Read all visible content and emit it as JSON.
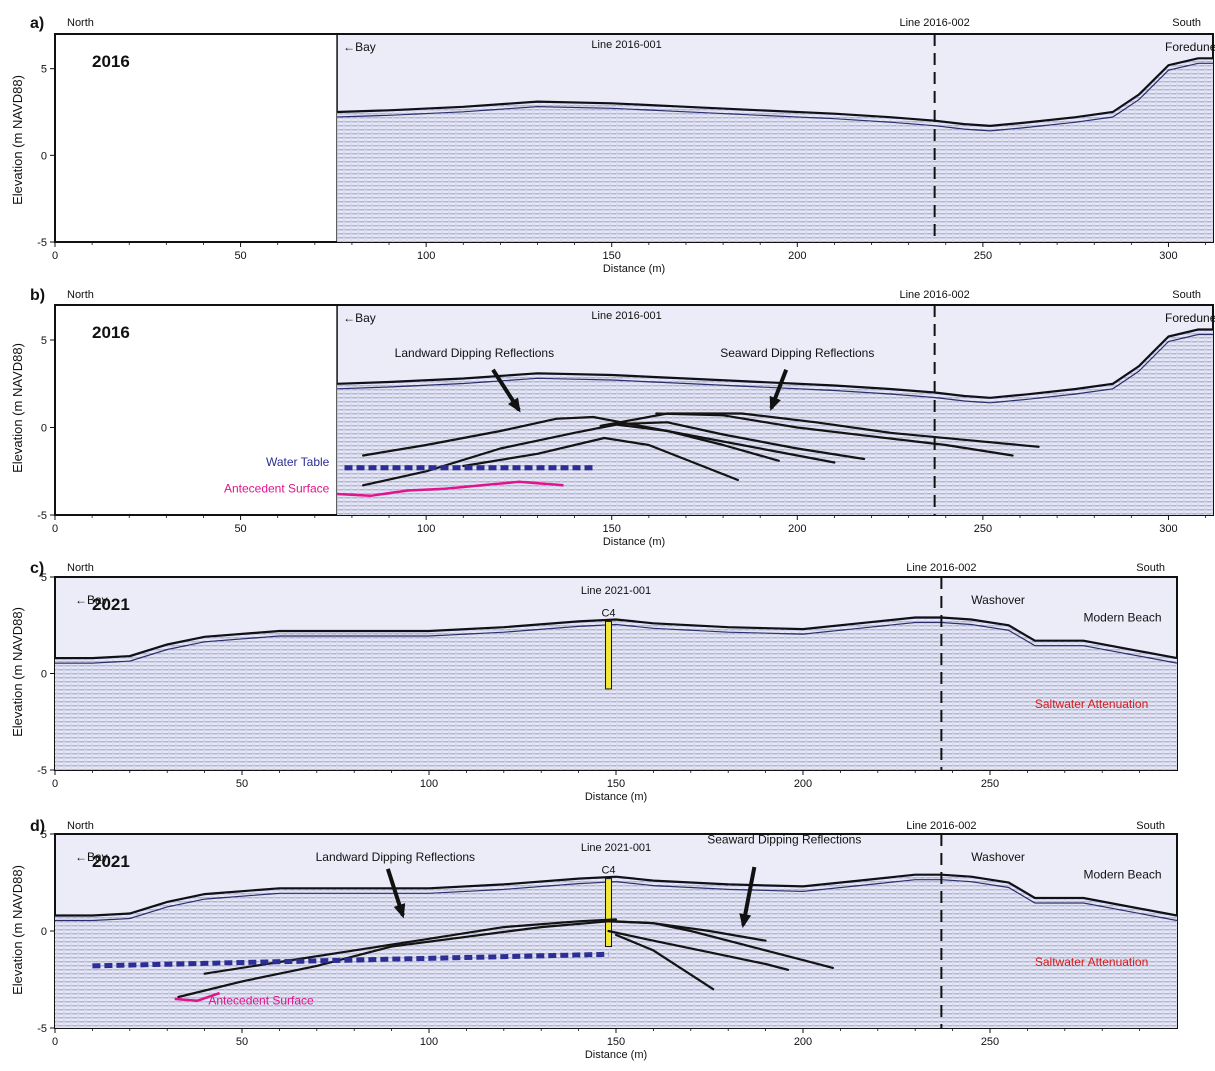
{
  "chart_data": [
    {
      "type": "line",
      "panel_label": "a)",
      "year": "2016",
      "xlabel": "Distance (m)",
      "ylabel": "Elevation (m NAVD88)",
      "xlim": [
        0,
        312
      ],
      "ylim": [
        -5,
        7
      ],
      "xticks": [
        0,
        50,
        100,
        150,
        200,
        250,
        300
      ],
      "yticks": [
        5,
        0,
        -5
      ],
      "north_label": "North",
      "south_label": "South",
      "line_name": "Line 2016-001",
      "crossing_line": {
        "name": "Line 2016-002",
        "x": 237
      },
      "labels": {
        "bay": "←Bay",
        "foredune": "Foredune"
      },
      "data_start_x": 76,
      "surface": {
        "x": [
          76,
          90,
          110,
          130,
          150,
          170,
          190,
          210,
          225,
          237,
          245,
          252,
          262,
          275,
          285,
          292,
          300,
          308,
          312
        ],
        "y": [
          2.5,
          2.6,
          2.8,
          3.1,
          3.0,
          2.8,
          2.6,
          2.4,
          2.2,
          2.0,
          1.8,
          1.7,
          1.9,
          2.2,
          2.5,
          3.5,
          5.2,
          5.6,
          5.6
        ]
      },
      "interpretations": []
    },
    {
      "type": "line",
      "panel_label": "b)",
      "year": "2016",
      "xlabel": "Distance (m)",
      "ylabel": "Elevation (m NAVD88)",
      "xlim": [
        0,
        312
      ],
      "ylim": [
        -5,
        7
      ],
      "xticks": [
        0,
        50,
        100,
        150,
        200,
        250,
        300
      ],
      "yticks": [
        5,
        0,
        -5
      ],
      "north_label": "North",
      "south_label": "South",
      "line_name": "Line 2016-001",
      "crossing_line": {
        "name": "Line 2016-002",
        "x": 237
      },
      "labels": {
        "bay": "←Bay",
        "foredune": "Foredune",
        "landward": "Landward Dipping Reflections",
        "seaward": "Seaward Dipping Reflections",
        "water_table": "Water Table",
        "antecedent": "Antecedent Surface"
      },
      "data_start_x": 76,
      "surface": {
        "x": [
          76,
          90,
          110,
          130,
          150,
          170,
          190,
          210,
          225,
          237,
          245,
          252,
          262,
          275,
          285,
          292,
          300,
          308,
          312
        ],
        "y": [
          2.5,
          2.6,
          2.8,
          3.1,
          3.0,
          2.8,
          2.6,
          2.4,
          2.2,
          2.0,
          1.8,
          1.7,
          1.9,
          2.2,
          2.5,
          3.5,
          5.2,
          5.6,
          5.6
        ]
      },
      "interpretations": [
        {
          "kind": "reflector",
          "x": [
            83,
            100,
            120,
            135,
            145,
            160,
            175,
            195,
            210
          ],
          "y": [
            -1.6,
            -1.0,
            -0.2,
            0.5,
            0.6,
            0.0,
            -0.6,
            -1.4,
            -2.0
          ]
        },
        {
          "kind": "reflector",
          "x": [
            83,
            100,
            120,
            140,
            152,
            165,
            180,
            200,
            218
          ],
          "y": [
            -3.3,
            -2.5,
            -1.2,
            -0.3,
            0.2,
            0.3,
            -0.4,
            -1.2,
            -1.8
          ]
        },
        {
          "kind": "reflector",
          "x": [
            110,
            130,
            148,
            160,
            172,
            184
          ],
          "y": [
            -2.2,
            -1.5,
            -0.6,
            -1.0,
            -2.0,
            -3.0
          ]
        },
        {
          "kind": "reflector",
          "x": [
            147,
            165,
            185,
            205,
            225,
            245,
            265
          ],
          "y": [
            0.1,
            0.8,
            0.8,
            0.3,
            -0.3,
            -0.7,
            -1.1
          ]
        },
        {
          "kind": "reflector",
          "x": [
            162,
            180,
            200,
            220,
            240,
            258
          ],
          "y": [
            0.8,
            0.7,
            0.0,
            -0.5,
            -1.0,
            -1.6
          ]
        },
        {
          "kind": "reflector",
          "x": [
            150,
            165,
            180,
            195
          ],
          "y": [
            0.2,
            -0.2,
            -1.0,
            -1.9
          ]
        },
        {
          "kind": "water_table",
          "x": [
            78,
            145
          ],
          "y": [
            -2.3,
            -2.3
          ]
        },
        {
          "kind": "antecedent",
          "x": [
            76,
            85,
            95,
            105,
            115,
            125,
            137
          ],
          "y": [
            -3.8,
            -3.9,
            -3.6,
            -3.5,
            -3.3,
            -3.1,
            -3.3
          ]
        }
      ],
      "arrows": [
        {
          "label": "landward",
          "x1": 118,
          "y1": 3.3,
          "x2": 125,
          "y2": 1.0
        },
        {
          "label": "seaward",
          "x1": 197,
          "y1": 3.3,
          "x2": 193,
          "y2": 1.1
        }
      ]
    },
    {
      "type": "line",
      "panel_label": "c)",
      "year": "2021",
      "xlabel": "Distance (m)",
      "ylabel": "Elevation (m NAVD88)",
      "xlim": [
        0,
        300
      ],
      "ylim": [
        -5,
        5
      ],
      "xticks": [
        0,
        50,
        100,
        150,
        200,
        250
      ],
      "yticks": [
        5,
        0,
        -5
      ],
      "north_label": "North",
      "south_label": "South",
      "line_name": "Line 2021-001",
      "crossing_line": {
        "name": "Line 2016-002",
        "x": 237
      },
      "labels": {
        "bay": "←Bay",
        "washover": "Washover",
        "modern_beach": "Modern Beach",
        "saltwater": "Saltwater Attenuation"
      },
      "core": {
        "name": "C4",
        "x": 148,
        "top": 2.7,
        "bottom": -0.8
      },
      "data_start_x": 0,
      "surface": {
        "x": [
          0,
          10,
          20,
          30,
          40,
          60,
          80,
          100,
          120,
          140,
          150,
          160,
          180,
          200,
          215,
          230,
          237,
          245,
          255,
          262,
          275,
          300
        ],
        "y": [
          0.8,
          0.8,
          0.9,
          1.5,
          1.9,
          2.2,
          2.2,
          2.2,
          2.4,
          2.7,
          2.8,
          2.6,
          2.4,
          2.3,
          2.6,
          2.9,
          2.9,
          2.8,
          2.5,
          1.7,
          1.7,
          0.8
        ]
      },
      "interpretations": []
    },
    {
      "type": "line",
      "panel_label": "d)",
      "year": "2021",
      "xlabel": "Distance (m)",
      "ylabel": "Elevation (m NAVD88)",
      "xlim": [
        0,
        300
      ],
      "ylim": [
        -5,
        5
      ],
      "xticks": [
        0,
        50,
        100,
        150,
        200,
        250
      ],
      "yticks": [
        5,
        0,
        -5
      ],
      "north_label": "North",
      "south_label": "South",
      "line_name": "Line 2021-001",
      "crossing_line": {
        "name": "Line 2016-002",
        "x": 237
      },
      "labels": {
        "bay": "←Bay",
        "washover": "Washover",
        "modern_beach": "Modern Beach",
        "saltwater": "Saltwater Attenuation",
        "landward": "Landward Dipping Reflections",
        "seaward": "Seaward Dipping Reflections",
        "antecedent": "Antecedent Surface"
      },
      "core": {
        "name": "C4",
        "x": 148,
        "top": 2.7,
        "bottom": -0.8
      },
      "data_start_x": 0,
      "surface": {
        "x": [
          0,
          10,
          20,
          30,
          40,
          60,
          80,
          100,
          120,
          140,
          150,
          160,
          180,
          200,
          215,
          230,
          237,
          245,
          255,
          262,
          275,
          300
        ],
        "y": [
          0.8,
          0.8,
          0.9,
          1.5,
          1.9,
          2.2,
          2.2,
          2.2,
          2.4,
          2.7,
          2.8,
          2.6,
          2.4,
          2.3,
          2.6,
          2.9,
          2.9,
          2.8,
          2.5,
          1.7,
          1.7,
          0.8
        ]
      },
      "interpretations": [
        {
          "kind": "reflector",
          "x": [
            33,
            50,
            70,
            90,
            110,
            130,
            148,
            160,
            175,
            190
          ],
          "y": [
            -3.4,
            -2.6,
            -1.8,
            -0.8,
            -0.3,
            0.2,
            0.5,
            0.4,
            0.0,
            -0.5
          ]
        },
        {
          "kind": "reflector",
          "x": [
            40,
            60,
            80,
            100,
            120,
            140,
            150
          ],
          "y": [
            -2.2,
            -1.6,
            -1.0,
            -0.4,
            0.2,
            0.5,
            0.6
          ]
        },
        {
          "kind": "reflector",
          "x": [
            150,
            160,
            170,
            180,
            190,
            200,
            208
          ],
          "y": [
            0.5,
            0.4,
            0.0,
            -0.5,
            -1.0,
            -1.5,
            -1.9
          ]
        },
        {
          "kind": "reflector",
          "x": [
            148,
            160,
            175,
            190,
            196
          ],
          "y": [
            0.0,
            -0.5,
            -1.1,
            -1.7,
            -2.0
          ]
        },
        {
          "kind": "reflector",
          "x": [
            150,
            160,
            168,
            176
          ],
          "y": [
            -0.2,
            -1.0,
            -2.0,
            -3.0
          ]
        },
        {
          "kind": "water_table",
          "x": [
            10,
            148
          ],
          "y": [
            -1.8,
            -1.2
          ]
        },
        {
          "kind": "antecedent",
          "x": [
            32,
            38,
            44
          ],
          "y": [
            -3.5,
            -3.6,
            -3.2
          ]
        }
      ],
      "arrows": [
        {
          "label": "landward",
          "x1": 89,
          "y1": 3.2,
          "x2": 93,
          "y2": 0.8
        },
        {
          "label": "seaward",
          "x1": 187,
          "y1": 3.3,
          "x2": 184,
          "y2": 0.3
        }
      ]
    }
  ]
}
